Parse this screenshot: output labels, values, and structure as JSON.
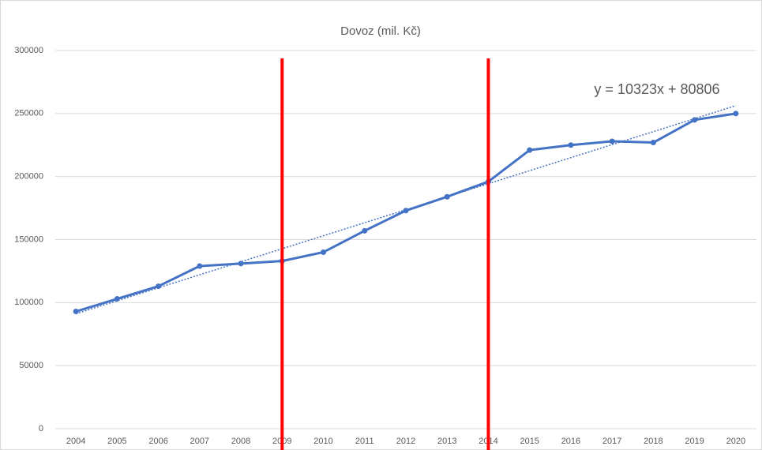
{
  "chart_data": {
    "type": "line",
    "title": "Dovoz (mil. Kč)",
    "categories": [
      "2004",
      "2005",
      "2006",
      "2007",
      "2008",
      "2009",
      "2010",
      "2011",
      "2012",
      "2013",
      "2014",
      "2015",
      "2016",
      "2017",
      "2018",
      "2019",
      "2020"
    ],
    "series": [
      {
        "name": "Dovoz",
        "color": "#4472c4",
        "values": [
          93000,
          103000,
          113000,
          129000,
          131000,
          133000,
          140000,
          157000,
          173000,
          184000,
          196000,
          221000,
          225000,
          228000,
          227000,
          245000,
          250000
        ]
      }
    ],
    "ylim": [
      0,
      300000
    ],
    "yticks": [
      0,
      50000,
      100000,
      150000,
      200000,
      250000,
      300000
    ],
    "grid": true,
    "trendline": {
      "slope": 10323,
      "intercept": 80806,
      "label": "y = 10323x + 80806",
      "style": "dotted"
    },
    "highlight_categories": [
      "2009",
      "2014"
    ],
    "highlight_color": "#ff0000"
  }
}
